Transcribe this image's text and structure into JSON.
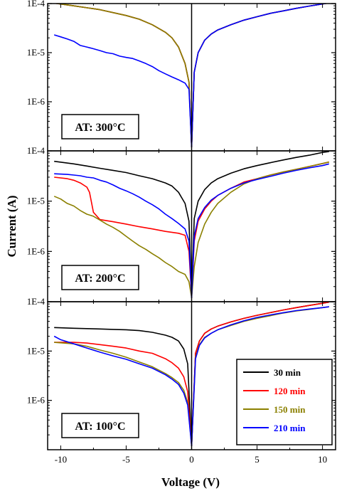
{
  "chart_data": {
    "type": "line",
    "xlabel": "Voltage (V)",
    "ylabel": "Current (A)",
    "xlim": [
      -11,
      11
    ],
    "ylim": [
      1e-07,
      0.0001
    ],
    "yscale": "log",
    "x_ticks": [
      -10,
      -5,
      0,
      5,
      10
    ],
    "x_tick_labels": [
      "-10",
      "-5",
      "0",
      "5",
      "10"
    ],
    "y_ticks": [
      1e-06,
      1e-05,
      0.0001
    ],
    "y_tick_labels": [
      "1E-6",
      "1E-5",
      "1E-4"
    ],
    "legend": {
      "position": "bottom-right of bottom panel",
      "entries": [
        {
          "label": "30 min",
          "color": "#000000"
        },
        {
          "label": "120 min",
          "color": "#ff0000"
        },
        {
          "label": "150 min",
          "color": "#8b8000"
        },
        {
          "label": "210 min",
          "color": "#0000ff"
        }
      ]
    },
    "panels": [
      {
        "annotation": "AT: 300°C",
        "series": [
          {
            "name": "30 min",
            "color": "#000000",
            "x": [
              -10.6,
              -9,
              -7,
              -5,
              -4,
              -3,
              -2,
              -1.5,
              -1,
              -0.5,
              -0.2,
              0,
              0.2,
              0.5,
              1,
              1.5,
              2,
              3,
              4,
              5,
              6,
              7,
              8,
              9,
              10,
              10.5
            ],
            "y": [
              0.000103,
              9e-05,
              7.5e-05,
              5.7e-05,
              4.8e-05,
              3.7e-05,
              2.6e-05,
              2e-05,
              1.3e-05,
              6e-06,
              2.5e-06,
              1.2e-07,
              4e-06,
              1e-05,
              1.8e-05,
              2.4e-05,
              2.9e-05,
              3.7e-05,
              4.6e-05,
              5.4e-05,
              6.3e-05,
              7.1e-05,
              8e-05,
              8.9e-05,
              9.8e-05,
              0.000103
            ]
          },
          {
            "name": "120 min",
            "color": "#ff0000",
            "x": [
              -10.6,
              -9,
              -7,
              -5,
              -4,
              -3,
              -2,
              -1.5,
              -1,
              -0.5,
              -0.2,
              0,
              0.2,
              0.5,
              1,
              1.5,
              2,
              3,
              4,
              5,
              6,
              7,
              8,
              9,
              10,
              10.5
            ],
            "y": [
              0.000103,
              9e-05,
              7.5e-05,
              5.7e-05,
              4.8e-05,
              3.7e-05,
              2.6e-05,
              2e-05,
              1.3e-05,
              6e-06,
              2.5e-06,
              1.2e-07,
              4e-06,
              1e-05,
              1.8e-05,
              2.4e-05,
              2.9e-05,
              3.7e-05,
              4.6e-05,
              5.4e-05,
              6.3e-05,
              7.1e-05,
              8e-05,
              8.9e-05,
              9.8e-05,
              0.000103
            ]
          },
          {
            "name": "150 min",
            "color": "#8b8000",
            "x": [
              -10.6,
              -9,
              -7,
              -5,
              -4,
              -3,
              -2,
              -1.5,
              -1,
              -0.5,
              -0.2,
              0,
              0.2,
              0.5,
              1,
              1.5,
              2,
              3,
              4,
              5,
              6,
              7,
              8,
              9,
              10,
              10.5
            ],
            "y": [
              0.000103,
              9e-05,
              7.5e-05,
              5.7e-05,
              4.8e-05,
              3.7e-05,
              2.6e-05,
              2e-05,
              1.3e-05,
              6e-06,
              2.5e-06,
              1.2e-07,
              4e-06,
              1e-05,
              1.8e-05,
              2.4e-05,
              2.9e-05,
              3.7e-05,
              4.6e-05,
              5.4e-05,
              6.3e-05,
              7.1e-05,
              8e-05,
              8.9e-05,
              9.8e-05,
              0.000103
            ]
          },
          {
            "name": "210 min",
            "color": "#0000ff",
            "x": [
              -10.5,
              -10,
              -9.5,
              -9,
              -8.5,
              -8,
              -7.5,
              -7,
              -6.5,
              -6,
              -5.5,
              -5,
              -4.5,
              -4,
              -3.5,
              -3,
              -2.5,
              -2,
              -1.5,
              -1,
              -0.5,
              -0.2,
              0,
              0.2,
              0.5,
              1,
              1.5,
              2,
              3,
              4,
              5,
              6,
              7,
              8,
              9,
              10,
              10.5
            ],
            "y": [
              2.3e-05,
              2.1e-05,
              1.9e-05,
              1.7e-05,
              1.4e-05,
              1.3e-05,
              1.2e-05,
              1.1e-05,
              1e-05,
              9.5e-06,
              8.5e-06,
              8e-06,
              7.6e-06,
              6.8e-06,
              6e-06,
              5.2e-06,
              4.3e-06,
              3.7e-06,
              3.2e-06,
              2.8e-06,
              2.4e-06,
              1.8e-06,
              1.2e-07,
              4e-06,
              1e-05,
              1.8e-05,
              2.4e-05,
              2.9e-05,
              3.7e-05,
              4.6e-05,
              5.4e-05,
              6.3e-05,
              7.1e-05,
              8e-05,
              8.9e-05,
              9.8e-05,
              0.000103
            ]
          }
        ]
      },
      {
        "annotation": "AT: 200°C",
        "series": [
          {
            "name": "30 min",
            "color": "#000000",
            "x": [
              -10.5,
              -9,
              -8,
              -7,
              -6,
              -5,
              -4,
              -3,
              -2,
              -1.5,
              -1,
              -0.5,
              -0.2,
              0,
              0.2,
              0.5,
              1,
              1.5,
              2,
              3,
              4,
              5,
              6,
              7,
              8,
              9,
              10,
              10.5
            ],
            "y": [
              6.2e-05,
              5.5e-05,
              5e-05,
              4.5e-05,
              4.1e-05,
              3.7e-05,
              3.2e-05,
              2.8e-05,
              2.3e-05,
              2e-05,
              1.5e-05,
              9e-06,
              4e-06,
              1.2e-07,
              4.5e-06,
              1e-05,
              1.7e-05,
              2.3e-05,
              2.8e-05,
              3.6e-05,
              4.4e-05,
              5.1e-05,
              5.8e-05,
              6.6e-05,
              7.4e-05,
              8.2e-05,
              9.3e-05,
              9.7e-05
            ]
          },
          {
            "name": "120 min",
            "color": "#ff0000",
            "x": [
              -10.5,
              -9.5,
              -9,
              -8.5,
              -8,
              -7.8,
              -7.5,
              -7,
              -6,
              -5,
              -4,
              -3,
              -2,
              -1,
              -0.5,
              -0.2,
              0,
              0.2,
              0.5,
              1,
              1.5,
              2,
              3,
              4,
              5,
              6,
              7,
              8,
              9,
              10,
              10.5
            ],
            "y": [
              3e-05,
              2.8e-05,
              2.6e-05,
              2.3e-05,
              1.9e-05,
              1.5e-05,
              6e-06,
              4.3e-06,
              3.9e-06,
              3.5e-06,
              3.1e-06,
              2.8e-06,
              2.5e-06,
              2.3e-06,
              2.1e-06,
              1e-06,
              1.2e-07,
              1.6e-06,
              4e-06,
              7e-06,
              1e-05,
              1.3e-05,
              1.8e-05,
              2.4e-05,
              2.8e-05,
              3.3e-05,
              3.8e-05,
              4.3e-05,
              4.9e-05,
              5.6e-05,
              6e-05
            ]
          },
          {
            "name": "150 min",
            "color": "#8b8000",
            "x": [
              -10.5,
              -10,
              -9.5,
              -9,
              -8.5,
              -8,
              -7.5,
              -7,
              -6.5,
              -6,
              -5.5,
              -5,
              -4.5,
              -4,
              -3.5,
              -3,
              -2.5,
              -2,
              -1.5,
              -1,
              -0.5,
              -0.2,
              0,
              0.2,
              0.5,
              1,
              1.5,
              2,
              3,
              4,
              5,
              6,
              7,
              8,
              9,
              10,
              10.5
            ],
            "y": [
              1.25e-05,
              1.1e-05,
              9e-06,
              8e-06,
              6.5e-06,
              5.5e-06,
              5e-06,
              4.2e-06,
              3.5e-06,
              3e-06,
              2.5e-06,
              2e-06,
              1.6e-06,
              1.3e-06,
              1.1e-06,
              9e-07,
              7.5e-07,
              6e-07,
              5e-07,
              4e-07,
              3.5e-07,
              2.5e-07,
              1.2e-07,
              5e-07,
              1.5e-06,
              3.5e-06,
              6e-06,
              9e-06,
              1.5e-05,
              2.2e-05,
              2.8e-05,
              3.3e-05,
              3.8e-05,
              4.3e-05,
              4.9e-05,
              5.6e-05,
              6e-05
            ]
          },
          {
            "name": "210 min",
            "color": "#0000ff",
            "x": [
              -10.5,
              -9.5,
              -9,
              -8.5,
              -8,
              -7.5,
              -7,
              -6.5,
              -6,
              -5.5,
              -5,
              -4.5,
              -4,
              -3.5,
              -3,
              -2.5,
              -2,
              -1.5,
              -1,
              -0.5,
              -0.2,
              0,
              0.2,
              0.5,
              1,
              1.5,
              2,
              3,
              4,
              5,
              6,
              7,
              8,
              9,
              10,
              10.5
            ],
            "y": [
              3.5e-05,
              3.4e-05,
              3.3e-05,
              3.2e-05,
              3e-05,
              2.9e-05,
              2.6e-05,
              2.4e-05,
              2.1e-05,
              1.8e-05,
              1.6e-05,
              1.4e-05,
              1.2e-05,
              1e-05,
              8.5e-06,
              7e-06,
              5.5e-06,
              4.5e-06,
              3.6e-06,
              2.8e-06,
              1.6e-06,
              1.2e-07,
              2e-06,
              4.5e-06,
              7.5e-06,
              1.05e-05,
              1.3e-05,
              1.8e-05,
              2.3e-05,
              2.7e-05,
              3.1e-05,
              3.6e-05,
              4.1e-05,
              4.6e-05,
              5.1e-05,
              5.5e-05
            ]
          }
        ]
      },
      {
        "annotation": "AT: 100°C",
        "series": [
          {
            "name": "30 min",
            "color": "#000000",
            "x": [
              -10.5,
              -9,
              -8,
              -7,
              -6,
              -5,
              -4,
              -3,
              -2,
              -1.5,
              -1,
              -0.6,
              -0.3,
              0,
              0.3,
              0.6,
              1,
              1.5,
              2,
              3,
              4,
              5,
              6,
              7,
              8,
              9,
              10,
              10.5
            ],
            "y": [
              3e-05,
              2.9e-05,
              2.85e-05,
              2.8e-05,
              2.75e-05,
              2.7e-05,
              2.6e-05,
              2.4e-05,
              2.1e-05,
              1.9e-05,
              1.6e-05,
              1.1e-05,
              5.5e-06,
              1.2e-07,
              9e-06,
              1.6e-05,
              2.3e-05,
              2.8e-05,
              3.2e-05,
              3.9e-05,
              4.6e-05,
              5.3e-05,
              6e-05,
              6.8e-05,
              7.6e-05,
              8.4e-05,
              9.3e-05,
              9.8e-05
            ]
          },
          {
            "name": "120 min",
            "color": "#ff0000",
            "x": [
              -10.5,
              -9,
              -8,
              -7,
              -6,
              -5,
              -4,
              -3,
              -2,
              -1.5,
              -1,
              -0.6,
              -0.3,
              0,
              0.3,
              0.6,
              1,
              1.5,
              2,
              3,
              4,
              5,
              6,
              7,
              8,
              9,
              10,
              10.5
            ],
            "y": [
              1.5e-05,
              1.5e-05,
              1.45e-05,
              1.35e-05,
              1.25e-05,
              1.15e-05,
              1e-05,
              9e-06,
              7e-06,
              5.8e-06,
              4.5e-06,
              3e-06,
              1.5e-06,
              1.2e-07,
              9e-06,
              1.6e-05,
              2.3e-05,
              2.8e-05,
              3.2e-05,
              3.9e-05,
              4.6e-05,
              5.3e-05,
              6e-05,
              6.8e-05,
              7.6e-05,
              8.4e-05,
              9.3e-05,
              9.8e-05
            ]
          },
          {
            "name": "150 min",
            "color": "#8b8000",
            "x": [
              -10.5,
              -9,
              -8,
              -7,
              -6,
              -5,
              -4,
              -3,
              -2,
              -1.5,
              -1,
              -0.6,
              -0.3,
              0,
              0.3,
              0.6,
              1,
              1.5,
              2,
              3,
              4,
              5,
              6,
              7,
              8,
              9,
              10,
              10.5
            ],
            "y": [
              1.5e-05,
              1.4e-05,
              1.25e-05,
              1.05e-05,
              9e-06,
              7.5e-06,
              6e-06,
              4.8e-06,
              3.5e-06,
              2.9e-06,
              2.3e-06,
              1.6e-06,
              9e-07,
              1.2e-07,
              7.5e-06,
              1.35e-05,
              1.9e-05,
              2.3e-05,
              2.7e-05,
              3.3e-05,
              4e-05,
              4.6e-05,
              5.2e-05,
              5.9e-05,
              6.5e-05,
              7e-05,
              7.6e-05,
              7.9e-05
            ]
          },
          {
            "name": "210 min",
            "color": "#0000ff",
            "x": [
              -10.5,
              -10,
              -9,
              -8,
              -7,
              -6,
              -5,
              -4,
              -3,
              -2,
              -1.5,
              -1,
              -0.6,
              -0.3,
              0,
              0.3,
              0.6,
              1,
              1.5,
              2,
              3,
              4,
              5,
              6,
              7,
              8,
              9,
              10,
              10.5
            ],
            "y": [
              2e-05,
              1.7e-05,
              1.4e-05,
              1.15e-05,
              9.5e-06,
              8e-06,
              6.8e-06,
              5.5e-06,
              4.5e-06,
              3.3e-06,
              2.7e-06,
              2.1e-06,
              1.4e-06,
              8e-07,
              1.2e-07,
              7e-06,
              1.3e-05,
              1.85e-05,
              2.3e-05,
              2.7e-05,
              3.4e-05,
              4.1e-05,
              4.8e-05,
              5.4e-05,
              6e-05,
              6.6e-05,
              7.1e-05,
              7.6e-05,
              7.9e-05
            ]
          }
        ]
      }
    ]
  }
}
